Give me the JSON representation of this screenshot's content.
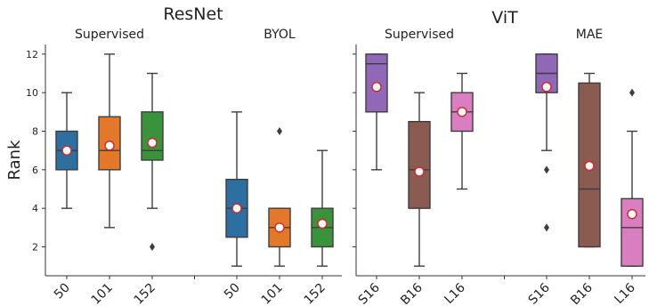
{
  "chart_data": [
    {
      "type": "box",
      "title": "ResNet",
      "ylabel": "Rank",
      "ylim": [
        0.5,
        12.5
      ],
      "yticks": [
        2,
        4,
        6,
        8,
        10,
        12
      ],
      "show_mean": true,
      "groups": [
        {
          "label": "Supervised",
          "boxes": [
            {
              "category": "50",
              "color": "#2c6fa0",
              "min": 4,
              "q1": 6,
              "median": 7,
              "q3": 8,
              "max": 10,
              "mean": 7.0,
              "outliers": []
            },
            {
              "category": "101",
              "color": "#e4782a",
              "min": 3,
              "q1": 6,
              "median": 7,
              "q3": 8.75,
              "max": 12,
              "mean": 7.25,
              "outliers": []
            },
            {
              "category": "152",
              "color": "#3a923a",
              "min": 4,
              "q1": 6.5,
              "median": 7,
              "q3": 9,
              "max": 11,
              "mean": 7.4,
              "outliers": [
                2
              ]
            }
          ]
        },
        {
          "label": "BYOL",
          "boxes": [
            {
              "category": "50",
              "color": "#2c6fa0",
              "min": 1,
              "q1": 2.5,
              "median": 4,
              "q3": 5.5,
              "max": 9,
              "mean": 4.0,
              "outliers": []
            },
            {
              "category": "101",
              "color": "#e4782a",
              "min": 1,
              "q1": 2,
              "median": 3,
              "q3": 4,
              "max": 4,
              "mean": 3.0,
              "outliers": [
                8
              ]
            },
            {
              "category": "152",
              "color": "#3a923a",
              "min": 1,
              "q1": 2,
              "median": 3,
              "q3": 4,
              "max": 7,
              "mean": 3.2,
              "outliers": []
            }
          ]
        }
      ]
    },
    {
      "type": "box",
      "title": "ViT",
      "ylabel": "",
      "ylim": [
        0.5,
        12.5
      ],
      "yticks": [
        2,
        4,
        6,
        8,
        10,
        12
      ],
      "show_mean": true,
      "groups": [
        {
          "label": "Supervised",
          "boxes": [
            {
              "category": "S16",
              "color": "#9167b8",
              "min": 6,
              "q1": 9,
              "median": 11.5,
              "q3": 12,
              "max": 12,
              "mean": 10.3,
              "outliers": []
            },
            {
              "category": "B16",
              "color": "#8b5a50",
              "min": 1,
              "q1": 4,
              "median": 6,
              "q3": 8.5,
              "max": 10,
              "mean": 5.9,
              "outliers": []
            },
            {
              "category": "L16",
              "color": "#d97ec0",
              "min": 5,
              "q1": 8,
              "median": 9,
              "q3": 10,
              "max": 11,
              "mean": 9.0,
              "outliers": []
            }
          ]
        },
        {
          "label": "MAE",
          "boxes": [
            {
              "category": "S16",
              "color": "#9167b8",
              "min": 7,
              "q1": 10,
              "median": 11,
              "q3": 12,
              "max": 12,
              "mean": 10.3,
              "outliers": [
                6,
                3
              ]
            },
            {
              "category": "B16",
              "color": "#8b5a50",
              "min": 2,
              "q1": 2,
              "median": 5,
              "q3": 10.5,
              "max": 11,
              "mean": 6.2,
              "outliers": []
            },
            {
              "category": "L16",
              "color": "#d97ec0",
              "min": 1,
              "q1": 1,
              "median": 3,
              "q3": 4.5,
              "max": 8,
              "mean": 3.7,
              "outliers": [
                10
              ]
            }
          ]
        }
      ]
    }
  ]
}
